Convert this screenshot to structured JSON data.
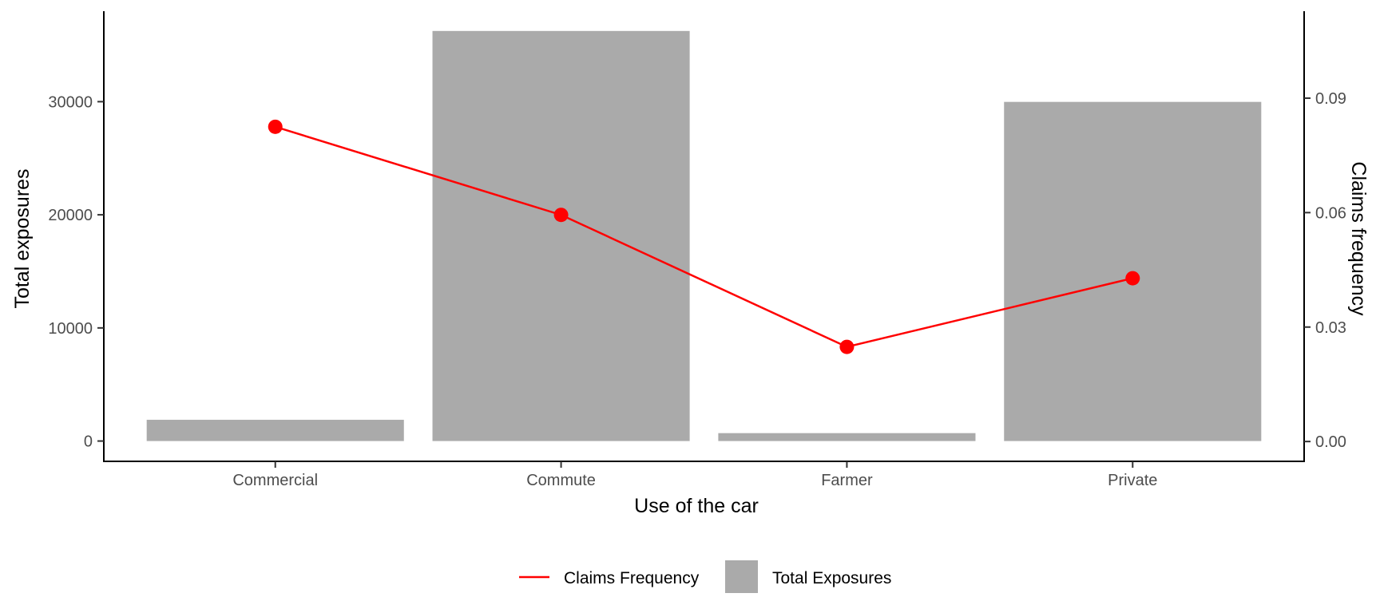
{
  "chart_data": {
    "type": "bar",
    "categories": [
      "Commercial",
      "Commute",
      "Farmer",
      "Private"
    ],
    "series": [
      {
        "name": "Total Exposures",
        "type": "bar",
        "axis": "left",
        "color": "#aaaaaa",
        "values": [
          1880,
          36250,
          700,
          29980
        ]
      },
      {
        "name": "Claims Frequency",
        "type": "line",
        "axis": "right",
        "color": "#ff0000",
        "values": [
          0.0825,
          0.0594,
          0.0248,
          0.0428
        ]
      }
    ],
    "title": "",
    "xlabel": "Use of the car",
    "ylabel": "Total exposures",
    "y2label": "Claims frequency",
    "ylim": [
      -1795,
      38000
    ],
    "y2lim": [
      -0.0052,
      0.1128
    ],
    "yticks": [
      "0",
      "10000",
      "20000",
      "30000"
    ],
    "yticks_values": [
      0,
      10000,
      20000,
      30000
    ],
    "y2ticks": [
      "0.00",
      "0.03",
      "0.06",
      "0.09"
    ],
    "y2ticks_values": [
      0,
      0.03,
      0.06,
      0.09
    ],
    "grid": false,
    "legend": {
      "position": "bottom",
      "items": [
        {
          "label": "Claims Frequency",
          "kind": "line",
          "color": "#ff0000"
        },
        {
          "label": "Total Exposures",
          "kind": "bar",
          "color": "#aaaaaa"
        }
      ]
    }
  }
}
